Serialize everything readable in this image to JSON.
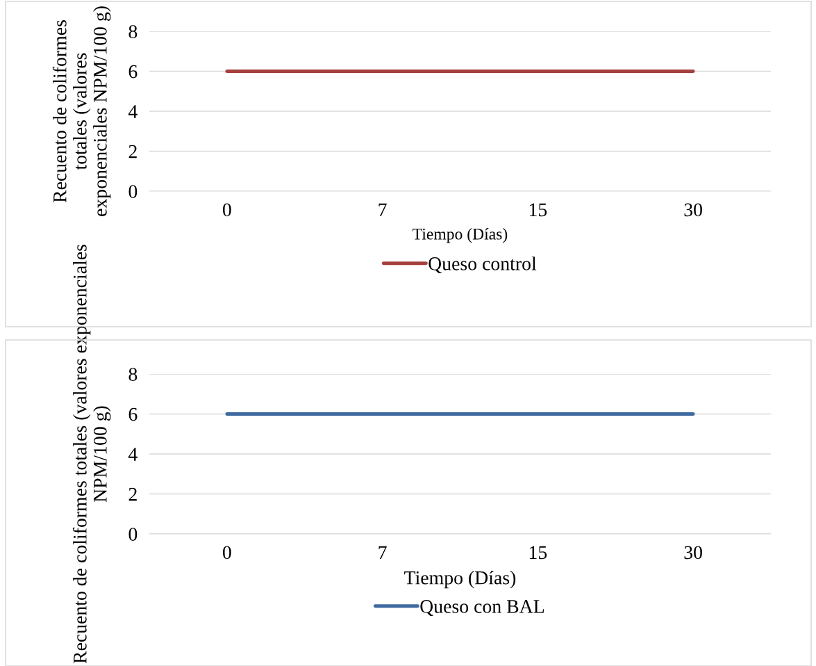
{
  "chart_data": [
    {
      "type": "line",
      "categories": [
        "0",
        "7",
        "15",
        "30"
      ],
      "xlabel": "Tiempo (Días)",
      "ylabel": "Recuento de coliformes totales (valores exponenciales NPM/100 g)",
      "ylim": [
        0,
        8
      ],
      "yticks": [
        0,
        2,
        4,
        6,
        8
      ],
      "grid": "y",
      "legend": "bottom",
      "marker": "none",
      "series": [
        {
          "name": "Queso control",
          "color": "#a5403d",
          "values": [
            6,
            6,
            6,
            6
          ]
        }
      ]
    },
    {
      "type": "line",
      "categories": [
        "0",
        "7",
        "15",
        "30"
      ],
      "xlabel": "Tiempo (Días)",
      "ylabel": "Recuento de coliformes totales (valores exponenciales NPM/100 g)",
      "ylim": [
        0,
        8
      ],
      "yticks": [
        0,
        2,
        4,
        6,
        8
      ],
      "grid": "y",
      "legend": "bottom",
      "marker": "none",
      "series": [
        {
          "name": "Queso con BAL",
          "color": "#3f6aa0",
          "values": [
            6,
            6,
            6,
            6
          ]
        }
      ]
    }
  ]
}
